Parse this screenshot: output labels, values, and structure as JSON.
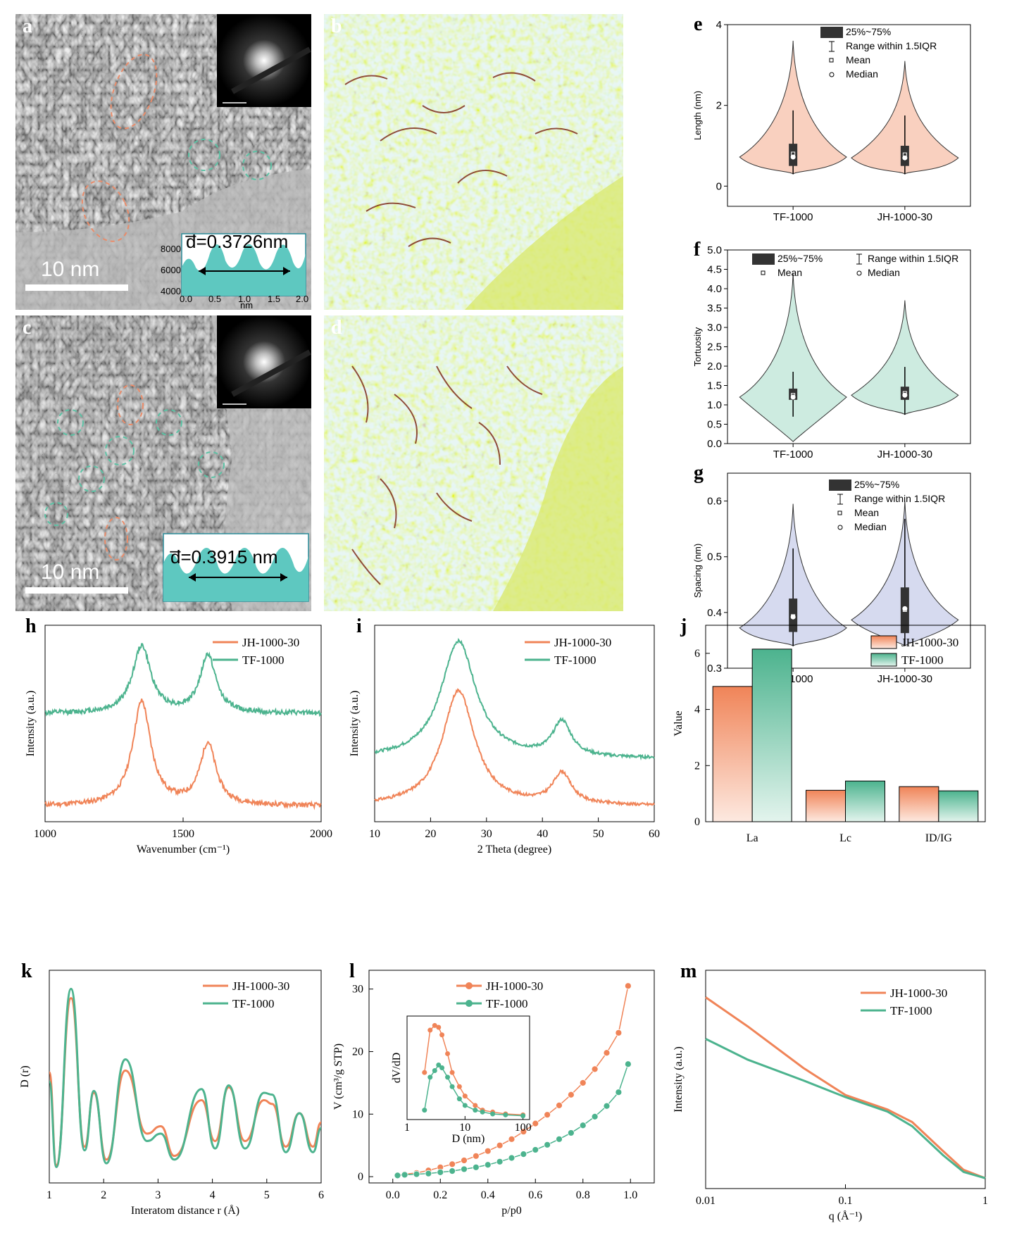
{
  "colors": {
    "jh": "#f08458",
    "tf": "#4cb38e",
    "violin_e": "#f9d0bf",
    "violin_f": "#cdebe0",
    "violin_g": "#d6daef",
    "inset_bg": "#5ec8c0"
  },
  "panels": {
    "a": {
      "label": "a",
      "scale_bar": "10 nm",
      "d_label": "d̅=0.3726nm",
      "inset_yticks": [
        "8000",
        "6000",
        "4000"
      ],
      "inset_xticks": [
        "0.0",
        "0.5",
        "1.0",
        "1.5",
        "2.0"
      ],
      "inset_xlabel": "nm"
    },
    "b": {
      "label": "b"
    },
    "c": {
      "label": "c",
      "scale_bar": "10 nm",
      "d_label": "d̅=0.3915 nm"
    },
    "d": {
      "label": "d"
    }
  },
  "chart_data": [
    {
      "id": "e",
      "type": "violin",
      "label": "e",
      "categories": [
        "TF-1000",
        "JH-1000-30"
      ],
      "ylabel": "Length (nm)",
      "ylim": [
        -0.5,
        4
      ],
      "yticks": [
        "0",
        "2",
        "4"
      ],
      "legend": [
        "25%~75%",
        "Range within 1.5IQR",
        "Mean",
        "Median"
      ],
      "stats": [
        {
          "min": 0.3,
          "max": 3.6,
          "q1": 0.5,
          "q3": 1.05,
          "mean": 0.8,
          "median": 0.72
        },
        {
          "min": 0.3,
          "max": 3.1,
          "q1": 0.5,
          "q3": 1.0,
          "mean": 0.78,
          "median": 0.7
        }
      ]
    },
    {
      "id": "f",
      "type": "violin",
      "label": "f",
      "categories": [
        "TF-1000",
        "JH-1000-30"
      ],
      "ylabel": "Tortuosity",
      "ylim": [
        0,
        5
      ],
      "yticks": [
        "0.0",
        "0.5",
        "1.0",
        "1.5",
        "2.0",
        "2.5",
        "3.0",
        "3.5",
        "4.0",
        "4.5",
        "5.0"
      ],
      "legend": [
        "25%~75%",
        "Mean",
        "Range within 1.5IQR",
        "Median"
      ],
      "stats": [
        {
          "min": 0.05,
          "max": 4.4,
          "q1": 1.13,
          "q3": 1.42,
          "mean": 1.25,
          "median": 1.2
        },
        {
          "min": 0.75,
          "max": 3.7,
          "q1": 1.13,
          "q3": 1.47,
          "mean": 1.3,
          "median": 1.25
        }
      ]
    },
    {
      "id": "g",
      "type": "violin",
      "label": "g",
      "categories": [
        "TF-1000",
        "JH-1000-30"
      ],
      "ylabel": "Spacing (nm)",
      "ylim": [
        0.3,
        0.65
      ],
      "yticks": [
        "0.3",
        "0.4",
        "0.5",
        "0.6"
      ],
      "legend": [
        "25%~75%",
        "Range within 1.5IQR",
        "Mean",
        "Median"
      ],
      "stats": [
        {
          "min": 0.34,
          "max": 0.595,
          "q1": 0.365,
          "q3": 0.425,
          "mean": 0.393,
          "median": 0.392
        },
        {
          "min": 0.34,
          "max": 0.6,
          "q1": 0.363,
          "q3": 0.445,
          "mean": 0.405,
          "median": 0.407
        }
      ]
    },
    {
      "id": "h",
      "type": "line",
      "label": "h",
      "xlabel": "Wavenumber (cm⁻¹)",
      "ylabel": "Intensity (a.u.)",
      "xlim": [
        1000,
        2000
      ],
      "xticks": [
        "1000",
        "1500",
        "2000"
      ],
      "series": [
        {
          "name": "JH-1000-30",
          "baseline": 0.08,
          "peaks": [
            [
              1350,
              0.62,
              40
            ],
            [
              1590,
              0.4,
              35
            ]
          ]
        },
        {
          "name": "TF-1000",
          "baseline": 0.55,
          "peaks": [
            [
              1350,
              0.9,
              40
            ],
            [
              1590,
              0.85,
              35
            ]
          ]
        }
      ]
    },
    {
      "id": "i",
      "type": "line",
      "label": "i",
      "xlabel": "2 Theta (degree)",
      "ylabel": "Intensity (a.u.)",
      "xlim": [
        10,
        60
      ],
      "xticks": [
        "10",
        "20",
        "30",
        "40",
        "50",
        "60"
      ],
      "series": [
        {
          "name": "JH-1000-30",
          "baseline": 0.08,
          "peaks": [
            [
              25,
              0.68,
              3.5
            ],
            [
              43.5,
              0.24,
              2
            ]
          ]
        },
        {
          "name": "TF-1000",
          "baseline": 0.32,
          "peaks": [
            [
              25,
              0.93,
              3.8
            ],
            [
              43.5,
              0.5,
              2
            ]
          ]
        }
      ]
    },
    {
      "id": "j",
      "type": "bar",
      "label": "j",
      "categories": [
        "La",
        "Lc",
        "ID/IG"
      ],
      "ylabel": "Value",
      "ylim": [
        0,
        7
      ],
      "yticks": [
        "0",
        "2",
        "4",
        "6"
      ],
      "series": [
        {
          "name": "JH-1000-30",
          "values": [
            4.82,
            1.12,
            1.25
          ]
        },
        {
          "name": "TF-1000",
          "values": [
            6.15,
            1.45,
            1.1
          ]
        }
      ]
    },
    {
      "id": "k",
      "type": "line",
      "label": "k",
      "xlabel": "Interatom distance r (Å)",
      "ylabel": "D (r)",
      "xlim": [
        1,
        6
      ],
      "xticks": [
        "1",
        "2",
        "3",
        "4",
        "5",
        "6"
      ],
      "series": [
        {
          "name": "JH-1000-30",
          "x": [
            1.0,
            1.13,
            1.4,
            1.65,
            1.82,
            2.05,
            2.4,
            2.8,
            3.05,
            3.3,
            3.8,
            4.05,
            4.3,
            4.6,
            4.95,
            5.1,
            5.35,
            5.6,
            5.85,
            6.0
          ],
          "y": [
            0.55,
            0.05,
            0.95,
            0.15,
            0.44,
            0.08,
            0.56,
            0.22,
            0.26,
            0.1,
            0.4,
            0.18,
            0.47,
            0.18,
            0.4,
            0.38,
            0.15,
            0.33,
            0.15,
            0.28
          ]
        },
        {
          "name": "TF-1000",
          "x": [
            1.0,
            1.13,
            1.4,
            1.65,
            1.82,
            2.05,
            2.4,
            2.8,
            3.05,
            3.3,
            3.8,
            4.05,
            4.3,
            4.6,
            4.95,
            5.1,
            5.35,
            5.6,
            5.85,
            6.0
          ],
          "y": [
            0.5,
            0.04,
            1.0,
            0.13,
            0.45,
            0.06,
            0.62,
            0.18,
            0.22,
            0.08,
            0.46,
            0.14,
            0.48,
            0.14,
            0.44,
            0.43,
            0.12,
            0.33,
            0.12,
            0.25
          ]
        }
      ]
    },
    {
      "id": "l",
      "type": "scatter",
      "label": "l",
      "xlabel": "p/p0",
      "ylabel": "V (cm³/g STP)",
      "xlim": [
        -0.1,
        1.1
      ],
      "ylim": [
        -1,
        33
      ],
      "xticks": [
        "0.0",
        "0.2",
        "0.4",
        "0.6",
        "0.8",
        "1.0"
      ],
      "yticks": [
        "0",
        "10",
        "20",
        "30"
      ],
      "series": [
        {
          "name": "JH-1000-30",
          "x": [
            0.02,
            0.05,
            0.1,
            0.15,
            0.2,
            0.25,
            0.3,
            0.35,
            0.4,
            0.45,
            0.5,
            0.55,
            0.6,
            0.65,
            0.7,
            0.75,
            0.8,
            0.85,
            0.9,
            0.95,
            0.99
          ],
          "y": [
            0.2,
            0.4,
            0.6,
            1.0,
            1.5,
            2.0,
            2.6,
            3.3,
            4.1,
            5.0,
            6.0,
            7.2,
            8.5,
            9.9,
            11.4,
            13.1,
            15.0,
            17.2,
            19.8,
            23.0,
            30.5
          ]
        },
        {
          "name": "TF-1000",
          "x": [
            0.02,
            0.05,
            0.1,
            0.15,
            0.2,
            0.25,
            0.3,
            0.35,
            0.4,
            0.45,
            0.5,
            0.55,
            0.6,
            0.65,
            0.7,
            0.75,
            0.8,
            0.85,
            0.9,
            0.95,
            0.99
          ],
          "y": [
            0.2,
            0.3,
            0.4,
            0.5,
            0.7,
            0.9,
            1.2,
            1.5,
            1.9,
            2.4,
            3.0,
            3.6,
            4.3,
            5.1,
            6.0,
            7.0,
            8.2,
            9.6,
            11.3,
            13.5,
            18.0
          ]
        }
      ],
      "inset": {
        "xlabel": "D (nm)",
        "ylabel": "dV/dD",
        "xscale": "log",
        "xticks": [
          "1",
          "10",
          "100"
        ],
        "series": [
          {
            "name": "JH-1000-30",
            "x": [
              2.0,
              2.5,
              3.0,
              3.5,
              4.0,
              5.0,
              6.0,
              8.0,
              10.0,
              15.0,
              20.0,
              30.0,
              50.0,
              100.0
            ],
            "y": [
              0.5,
              0.95,
              1.0,
              0.98,
              0.9,
              0.7,
              0.5,
              0.35,
              0.25,
              0.15,
              0.1,
              0.08,
              0.06,
              0.05
            ]
          },
          {
            "name": "TF-1000",
            "x": [
              2.0,
              2.5,
              3.0,
              3.5,
              4.0,
              5.0,
              6.0,
              8.0,
              10.0,
              15.0,
              20.0,
              30.0,
              50.0,
              100.0
            ],
            "y": [
              0.1,
              0.45,
              0.52,
              0.58,
              0.55,
              0.45,
              0.35,
              0.22,
              0.15,
              0.1,
              0.08,
              0.06,
              0.05,
              0.04
            ]
          }
        ]
      }
    },
    {
      "id": "m",
      "type": "line",
      "label": "m",
      "xlabel": "q (Å⁻¹)",
      "ylabel": "Intensity (a.u.)",
      "xscale": "log",
      "xlim": [
        0.01,
        1
      ],
      "xticks": [
        "0.01",
        "0.1",
        "1"
      ],
      "series": [
        {
          "name": "JH-1000-30",
          "x": [
            0.01,
            0.02,
            0.05,
            0.1,
            0.2,
            0.3,
            0.5,
            0.7,
            1.0
          ],
          "y": [
            0.92,
            0.78,
            0.58,
            0.45,
            0.38,
            0.32,
            0.18,
            0.09,
            0.05
          ]
        },
        {
          "name": "TF-1000",
          "x": [
            0.01,
            0.02,
            0.05,
            0.1,
            0.2,
            0.3,
            0.5,
            0.7,
            1.0
          ],
          "y": [
            0.72,
            0.62,
            0.52,
            0.44,
            0.37,
            0.3,
            0.16,
            0.08,
            0.05
          ]
        }
      ]
    }
  ]
}
